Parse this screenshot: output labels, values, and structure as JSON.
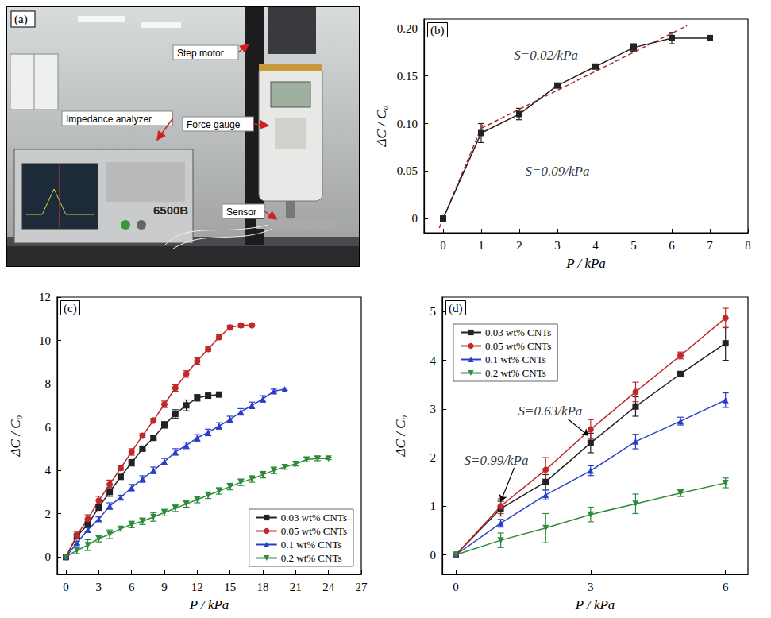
{
  "photo": {
    "panel": "(a)",
    "labels": [
      "Impedance analyzer",
      "Step motor",
      "Force gauge",
      "Sensor"
    ],
    "model": "6500B"
  },
  "chart_data": [
    {
      "panel": "(b)",
      "type": "line",
      "x_label": "P / kPa",
      "y_label": "ΔC / C₀",
      "xlim": [
        -0.5,
        8
      ],
      "xticks": [
        0,
        1,
        2,
        3,
        4,
        5,
        6,
        7,
        8
      ],
      "ylim": [
        -0.015,
        0.21
      ],
      "yticks": [
        0,
        0.05,
        {
          "value": 0.1,
          "label": "0.10"
        },
        0.15,
        {
          "value": 0.2,
          "label": "0.20"
        }
      ],
      "series": [
        {
          "color": "#222222",
          "marker": "square",
          "x": [
            0,
            1,
            2,
            3,
            4,
            5,
            6,
            7
          ],
          "values": [
            0,
            0.09,
            0.11,
            0.14,
            0.16,
            0.18,
            0.19,
            0.19
          ],
          "errors": [
            0,
            0.01,
            0.006,
            0.002,
            0.002,
            0.004,
            0.006,
            0
          ]
        }
      ],
      "fits": [
        {
          "color": "#b02a2a",
          "line_style": "dashed",
          "x": [
            -0.1,
            1.05
          ],
          "values": [
            -0.01,
            0.1
          ]
        },
        {
          "color": "#b02a2a",
          "line_style": "dashed",
          "x": [
            1,
            6.4
          ],
          "values": [
            0.095,
            0.203
          ]
        }
      ],
      "annotations": [
        {
          "text": "S=0.02/kPa",
          "x": 2.7,
          "y": 0.172
        },
        {
          "text": "S=0.09/kPa",
          "x": 3.0,
          "y": 0.05
        }
      ]
    },
    {
      "panel": "(c)",
      "type": "line",
      "x_label": "P / kPa",
      "y_label": "ΔC / C₀",
      "legend": "lower right",
      "xlim": [
        -0.8,
        27
      ],
      "xticks": [
        0,
        3,
        6,
        9,
        12,
        15,
        18,
        21,
        24,
        27
      ],
      "ylim": [
        -0.8,
        12
      ],
      "yticks": [
        0,
        2,
        4,
        6,
        8,
        10,
        12
      ],
      "series": [
        {
          "name": "0.03 wt% CNTs",
          "color": "#222222",
          "marker": "square",
          "x": [
            0,
            1,
            2,
            3,
            4,
            5,
            6,
            7,
            8,
            9,
            10,
            11,
            12,
            13,
            14
          ],
          "values": [
            0,
            0.95,
            1.5,
            2.3,
            3.0,
            3.7,
            4.35,
            5.0,
            5.5,
            6.1,
            6.6,
            7.0,
            7.35,
            7.45,
            7.5
          ],
          "errors": [
            0,
            0.1,
            0.15,
            0.15,
            0.2,
            0.1,
            0.15,
            0.1,
            0.1,
            0.15,
            0.2,
            0.25,
            0.15,
            0.1,
            0.05
          ]
        },
        {
          "name": "0.05 wt% CNTs",
          "color": "#c0282a",
          "marker": "circle",
          "x": [
            0,
            1,
            2,
            3,
            4,
            5,
            6,
            7,
            8,
            9,
            10,
            11,
            12,
            13,
            14,
            15,
            16,
            17
          ],
          "values": [
            0,
            1.0,
            1.75,
            2.6,
            3.35,
            4.1,
            4.85,
            5.6,
            6.3,
            7.05,
            7.8,
            8.45,
            9.05,
            9.6,
            10.15,
            10.6,
            10.7,
            10.7
          ],
          "errors": [
            0,
            0.15,
            0.2,
            0.2,
            0.2,
            0.1,
            0.15,
            0.1,
            0.1,
            0.15,
            0.15,
            0.15,
            0.15,
            0.1,
            0.1,
            0.1,
            0.1,
            0.05
          ]
        },
        {
          "name": "0.1 wt% CNTs",
          "color": "#2a3fc8",
          "marker": "triangle",
          "x": [
            0,
            1,
            2,
            3,
            4,
            5,
            6,
            7,
            8,
            9,
            10,
            11,
            12,
            13,
            14,
            15,
            16,
            17,
            18,
            19,
            20
          ],
          "values": [
            0,
            0.65,
            1.25,
            1.75,
            2.35,
            2.75,
            3.2,
            3.6,
            4.0,
            4.4,
            4.85,
            5.15,
            5.5,
            5.75,
            6.05,
            6.35,
            6.7,
            7.0,
            7.3,
            7.65,
            7.75
          ],
          "errors": [
            0,
            0.08,
            0.1,
            0.1,
            0.15,
            0.1,
            0.15,
            0.15,
            0.15,
            0.15,
            0.15,
            0.15,
            0.15,
            0.15,
            0.15,
            0.15,
            0.15,
            0.15,
            0.15,
            0.1,
            0.05
          ]
        },
        {
          "name": "0.2 wt% CNTs",
          "color": "#2e8b3a",
          "marker": "triangle-down",
          "x": [
            0,
            1,
            2,
            3,
            4,
            5,
            6,
            7,
            8,
            9,
            10,
            11,
            12,
            13,
            14,
            15,
            16,
            17,
            18,
            19,
            20,
            21,
            22,
            23,
            24
          ],
          "values": [
            0,
            0.3,
            0.55,
            0.85,
            1.05,
            1.3,
            1.5,
            1.65,
            1.85,
            2.05,
            2.25,
            2.45,
            2.65,
            2.85,
            3.05,
            3.25,
            3.45,
            3.6,
            3.8,
            4.0,
            4.15,
            4.3,
            4.5,
            4.55,
            4.55
          ],
          "errors": [
            0,
            0.15,
            0.25,
            0.15,
            0.2,
            0.1,
            0.15,
            0.15,
            0.2,
            0.15,
            0.15,
            0.15,
            0.15,
            0.15,
            0.15,
            0.15,
            0.15,
            0.15,
            0.15,
            0.15,
            0.1,
            0.1,
            0.1,
            0.1,
            0.05
          ]
        }
      ]
    },
    {
      "panel": "(d)",
      "type": "line",
      "x_label": "P / kPa",
      "y_label": "ΔC / C₀",
      "legend": "upper left",
      "xlim": [
        -0.3,
        6.5
      ],
      "xticks": [
        0,
        3,
        6
      ],
      "ylim": [
        -0.4,
        5.3
      ],
      "yticks": [
        0,
        1,
        2,
        3,
        4,
        5
      ],
      "series": [
        {
          "name": "0.03 wt% CNTs",
          "color": "#222222",
          "marker": "square",
          "x": [
            0,
            1,
            2,
            3,
            4,
            5,
            6
          ],
          "values": [
            0,
            0.95,
            1.5,
            2.3,
            3.05,
            3.72,
            4.35
          ],
          "errors": [
            0,
            0.15,
            0.15,
            0.2,
            0.2,
            0.05,
            0.35
          ]
        },
        {
          "name": "0.05 wt% CNTs",
          "color": "#c0282a",
          "marker": "circle",
          "x": [
            0,
            1,
            2,
            3,
            4,
            5,
            6
          ],
          "values": [
            0,
            1.0,
            1.75,
            2.58,
            3.35,
            4.1,
            4.87
          ],
          "errors": [
            0,
            0.15,
            0.25,
            0.2,
            0.2,
            0.07,
            0.2
          ]
        },
        {
          "name": "0.1 wt% CNTs",
          "color": "#2a3fc8",
          "marker": "triangle",
          "x": [
            0,
            1,
            2,
            3,
            4,
            5,
            6
          ],
          "values": [
            0,
            0.65,
            1.23,
            1.73,
            2.33,
            2.75,
            3.18
          ],
          "errors": [
            0,
            0.08,
            0.1,
            0.1,
            0.15,
            0.08,
            0.15
          ]
        },
        {
          "name": "0.2 wt% CNTs",
          "color": "#2e8b3a",
          "marker": "triangle-down",
          "x": [
            0,
            1,
            2,
            3,
            4,
            5,
            6
          ],
          "values": [
            0,
            0.3,
            0.55,
            0.83,
            1.05,
            1.27,
            1.48
          ],
          "errors": [
            0,
            0.15,
            0.3,
            0.15,
            0.2,
            0.07,
            0.1
          ]
        }
      ],
      "annotations": [
        {
          "text": "S=0.63/kPa",
          "x": 2.1,
          "y": 2.95,
          "point": [
            2.95,
            2.45
          ]
        },
        {
          "text": "S=0.99/kPa",
          "x": 0.9,
          "y": 1.95,
          "point": [
            1.0,
            1.1
          ]
        }
      ]
    }
  ]
}
